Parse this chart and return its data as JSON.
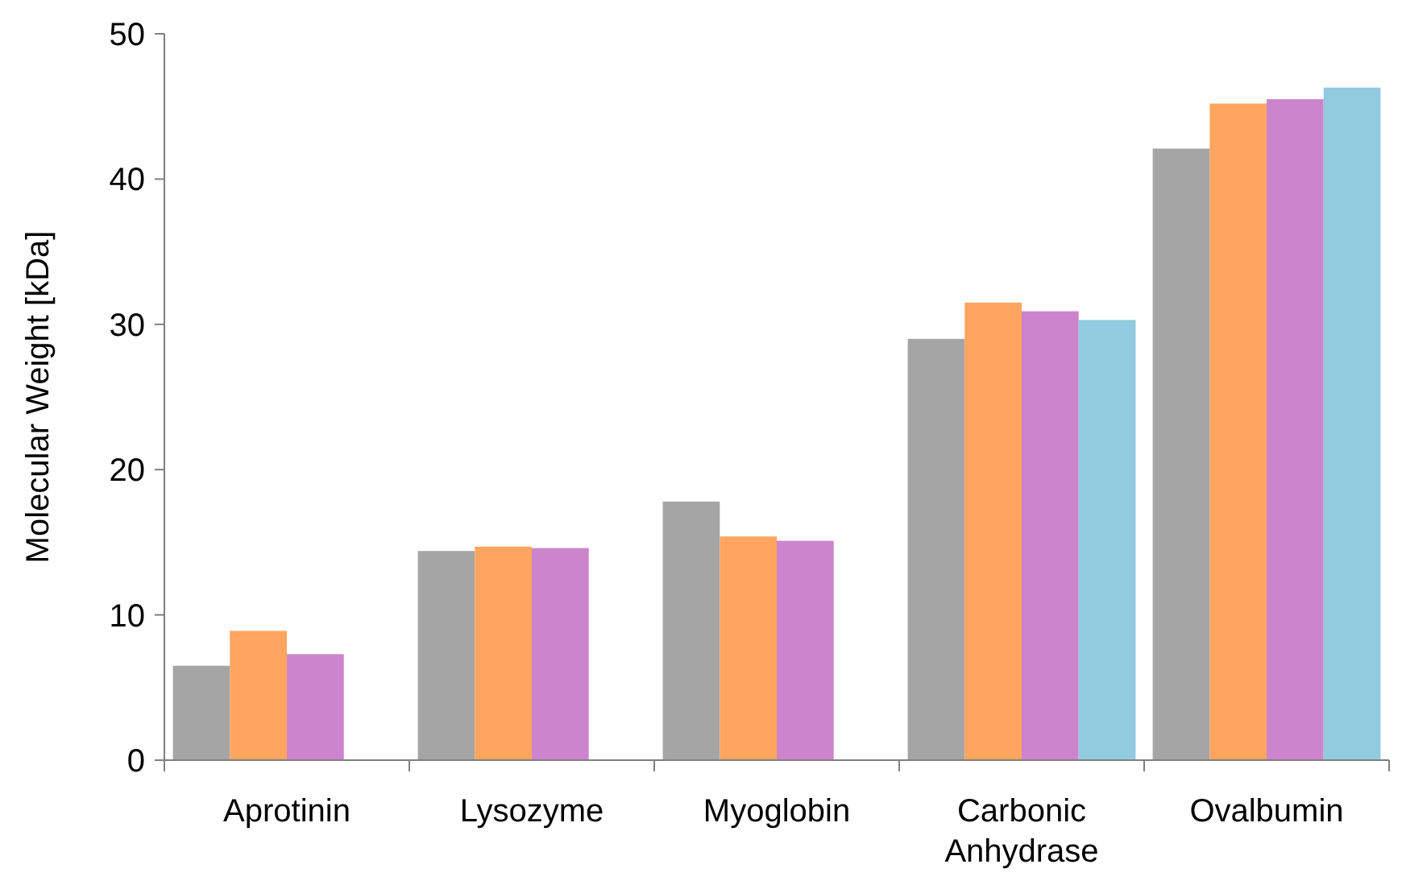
{
  "chart_data": {
    "type": "bar",
    "ylabel": "Molecular Weight [kDa]",
    "categories": [
      "Aprotinin",
      "Lysozyme",
      "Myoglobin",
      "Carbonic Anhydrase",
      "Ovalbumin"
    ],
    "series": [
      {
        "color": "#a5a5a5",
        "values": [
          6.5,
          14.4,
          17.8,
          29.0,
          42.1
        ]
      },
      {
        "color": "#ffa55f",
        "values": [
          8.9,
          14.7,
          15.4,
          31.5,
          45.2
        ]
      },
      {
        "color": "#cc84cc",
        "values": [
          7.3,
          14.6,
          15.1,
          30.9,
          45.5
        ]
      },
      {
        "color": "#92cadf",
        "values": [
          null,
          null,
          null,
          30.3,
          46.3
        ]
      }
    ],
    "ylim": [
      0,
      50
    ],
    "yticks": [
      0,
      10,
      20,
      30,
      40,
      50
    ]
  }
}
